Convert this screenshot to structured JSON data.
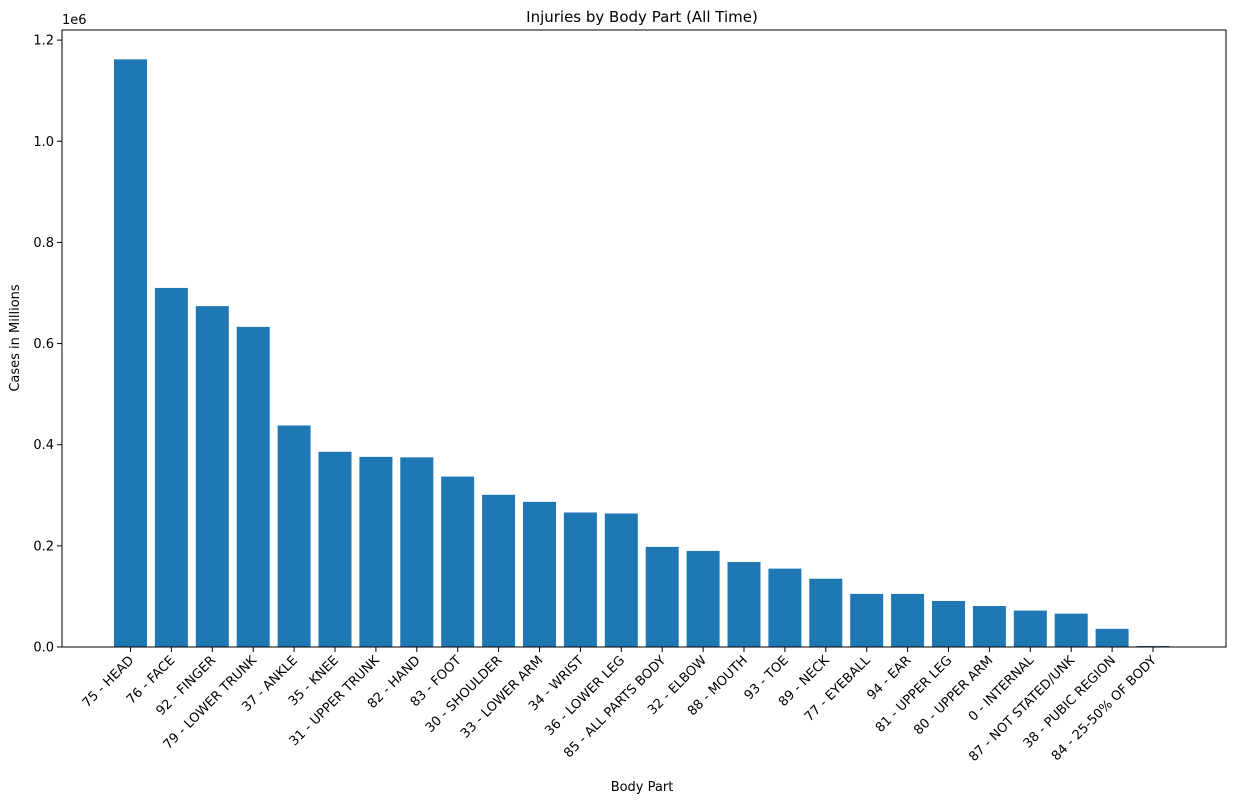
{
  "chart_data": {
    "type": "bar",
    "title": "Injuries by Body Part (All Time)",
    "xlabel": "Body Part",
    "ylabel": "Cases in Millions",
    "y_offset_text": "1e6",
    "ylim": [
      0,
      1220000
    ],
    "y_ticks": [
      0,
      200000,
      400000,
      600000,
      800000,
      1000000,
      1200000
    ],
    "y_tick_labels": [
      "0.0",
      "0.2",
      "0.4",
      "0.6",
      "0.8",
      "1.0",
      "1.2"
    ],
    "grid": false,
    "bar_color": "#1f77b4",
    "categories": [
      "75 - HEAD",
      "76 - FACE",
      "92 - FINGER",
      "79 - LOWER TRUNK",
      "37 - ANKLE",
      "35 - KNEE",
      "31 - UPPER TRUNK",
      "82 - HAND",
      "83 - FOOT",
      "30 - SHOULDER",
      "33 - LOWER ARM",
      "34 - WRIST",
      "36 - LOWER LEG",
      "85 - ALL PARTS BODY",
      "32 - ELBOW",
      "88 - MOUTH",
      "93 - TOE",
      "89 - NECK",
      "77 - EYEBALL",
      "94 - EAR",
      "81 - UPPER LEG",
      "80 - UPPER ARM",
      "0 - INTERNAL",
      "87 - NOT STATED/UNK",
      "38 - PUBIC REGION",
      "84 - 25-50% OF BODY"
    ],
    "values": [
      1162000,
      710000,
      674000,
      633000,
      438000,
      386000,
      376000,
      375000,
      337000,
      301000,
      287000,
      266000,
      264000,
      198000,
      190000,
      168000,
      155000,
      135000,
      105000,
      105000,
      91000,
      81000,
      72000,
      66000,
      36000,
      2000
    ]
  }
}
